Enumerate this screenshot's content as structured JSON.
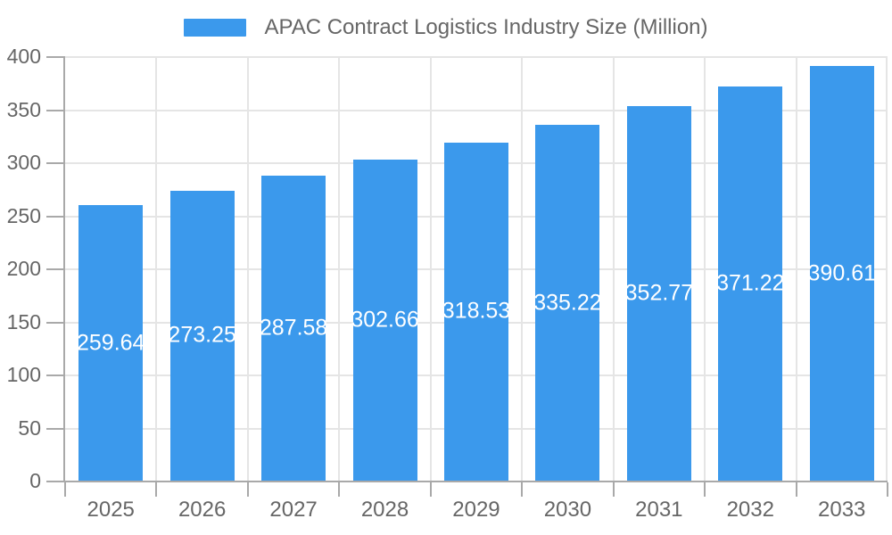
{
  "legend": {
    "label": "APAC Contract Logistics Industry Size (Million)"
  },
  "chart_data": {
    "type": "bar",
    "title": "APAC Contract Logistics Industry Size (Million)",
    "categories": [
      "2025",
      "2026",
      "2027",
      "2028",
      "2029",
      "2030",
      "2031",
      "2032",
      "2033"
    ],
    "values": [
      259.64,
      273.25,
      287.58,
      302.66,
      318.53,
      335.22,
      352.77,
      371.22,
      390.61
    ],
    "value_labels": [
      "259.64",
      "273.25",
      "287.58",
      "302.66",
      "318.53",
      "335.22",
      "352.77",
      "371.22",
      "390.61"
    ],
    "xlabel": "",
    "ylabel": "",
    "ylim": [
      0,
      400
    ],
    "y_ticks": [
      0,
      50,
      100,
      150,
      200,
      250,
      300,
      350,
      400
    ],
    "grid": true,
    "legend_position": "top",
    "value_label_position": "inside-middle",
    "colors": {
      "bar": "#3b99ec",
      "value_label": "#ffffff",
      "axis_line": "#a9a9a9",
      "gridline": "#e5e5e5",
      "text": "#666666"
    }
  }
}
